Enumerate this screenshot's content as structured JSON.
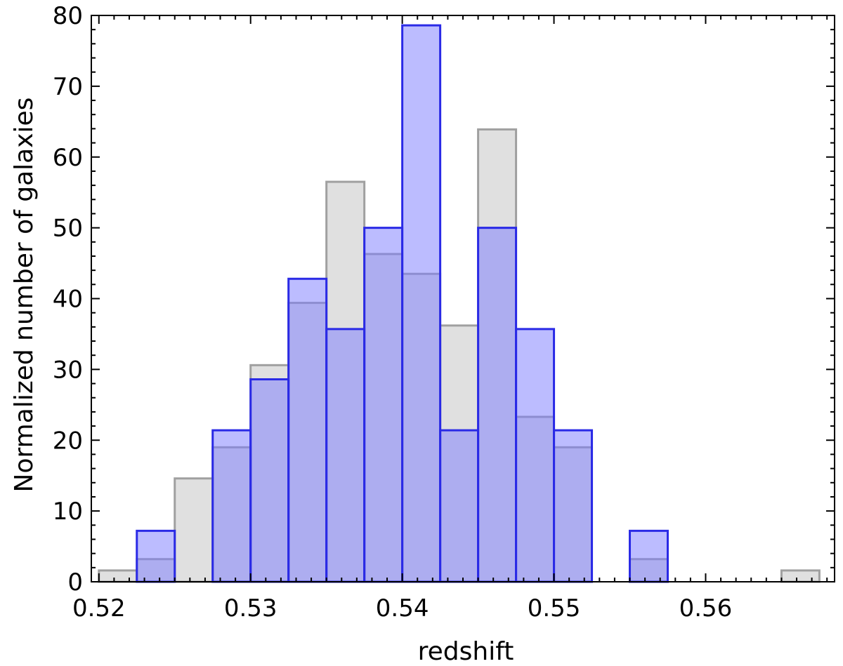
{
  "chart_data": {
    "type": "bar",
    "title": "",
    "xlabel": "redshift",
    "ylabel": "Normalized number of galaxies",
    "xlim": [
      0.5195,
      0.5685
    ],
    "ylim": [
      0,
      80
    ],
    "bin_width": 0.0025,
    "x_ticks": [
      "0.52",
      "0.53",
      "0.54",
      "0.55",
      "0.56"
    ],
    "y_ticks": [
      "0",
      "10",
      "20",
      "30",
      "40",
      "50",
      "60",
      "70",
      "80"
    ],
    "grid": false,
    "legend": "none",
    "series": [
      {
        "color": "#b4b4b4",
        "edge": "#a0a0a0",
        "bins": [
          {
            "x": 0.52,
            "value": 1.6
          },
          {
            "x": 0.5225,
            "value": 3.2
          },
          {
            "x": 0.525,
            "value": 14.6
          },
          {
            "x": 0.5275,
            "value": 19.0
          },
          {
            "x": 0.53,
            "value": 30.6
          },
          {
            "x": 0.5325,
            "value": 39.4
          },
          {
            "x": 0.535,
            "value": 56.5
          },
          {
            "x": 0.5375,
            "value": 46.3
          },
          {
            "x": 0.54,
            "value": 43.5
          },
          {
            "x": 0.5425,
            "value": 36.2
          },
          {
            "x": 0.545,
            "value": 63.9
          },
          {
            "x": 0.5475,
            "value": 23.3
          },
          {
            "x": 0.55,
            "value": 19.0
          },
          {
            "x": 0.5525,
            "value": 0
          },
          {
            "x": 0.555,
            "value": 3.2
          },
          {
            "x": 0.5575,
            "value": 0
          },
          {
            "x": 0.56,
            "value": 0
          },
          {
            "x": 0.5625,
            "value": 0
          },
          {
            "x": 0.565,
            "value": 1.6
          }
        ]
      },
      {
        "color": "#7a7aff",
        "edge": "#2a2ae6",
        "bins": [
          {
            "x": 0.5225,
            "value": 7.2
          },
          {
            "x": 0.5275,
            "value": 21.4
          },
          {
            "x": 0.53,
            "value": 28.6
          },
          {
            "x": 0.5325,
            "value": 42.8
          },
          {
            "x": 0.535,
            "value": 35.7
          },
          {
            "x": 0.5375,
            "value": 50.0
          },
          {
            "x": 0.54,
            "value": 78.6
          },
          {
            "x": 0.5425,
            "value": 21.4
          },
          {
            "x": 0.545,
            "value": 50.0
          },
          {
            "x": 0.5475,
            "value": 35.7
          },
          {
            "x": 0.55,
            "value": 21.4
          },
          {
            "x": 0.555,
            "value": 7.2
          }
        ]
      }
    ]
  }
}
